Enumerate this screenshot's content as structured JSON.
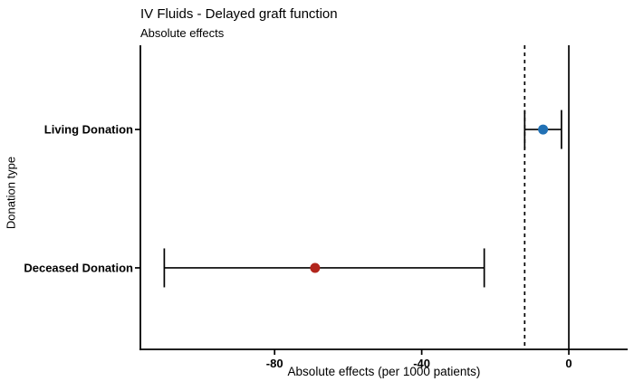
{
  "header": {
    "title": "IV Fluids - Delayed graft function",
    "subtitle": "Absolute effects"
  },
  "chart_data": {
    "type": "scatter",
    "subtype": "forest-plot-with-error-bars",
    "title": "IV Fluids - Delayed graft function",
    "subtitle": "Absolute effects",
    "xlabel": "Absolute effects (per 1000 patients)",
    "ylabel": "Donation type",
    "categories": [
      "Living Donation",
      "Deceased Donation"
    ],
    "points": [
      {
        "label": "Living Donation",
        "value": -7,
        "ci_low": -12,
        "ci_high": -2,
        "color": "#2171B5"
      },
      {
        "label": "Deceased Donation",
        "value": -69,
        "ci_low": -110,
        "ci_high": -23,
        "color": "#B2251C"
      }
    ],
    "reference_lines": [
      {
        "x": 0,
        "style": "solid"
      },
      {
        "x": -12,
        "style": "dashed"
      }
    ],
    "x_ticks": [
      -80,
      -40,
      0
    ],
    "xlim": [
      -116.5,
      16
    ],
    "grid": false,
    "legend": false,
    "line_color": "#000000"
  }
}
